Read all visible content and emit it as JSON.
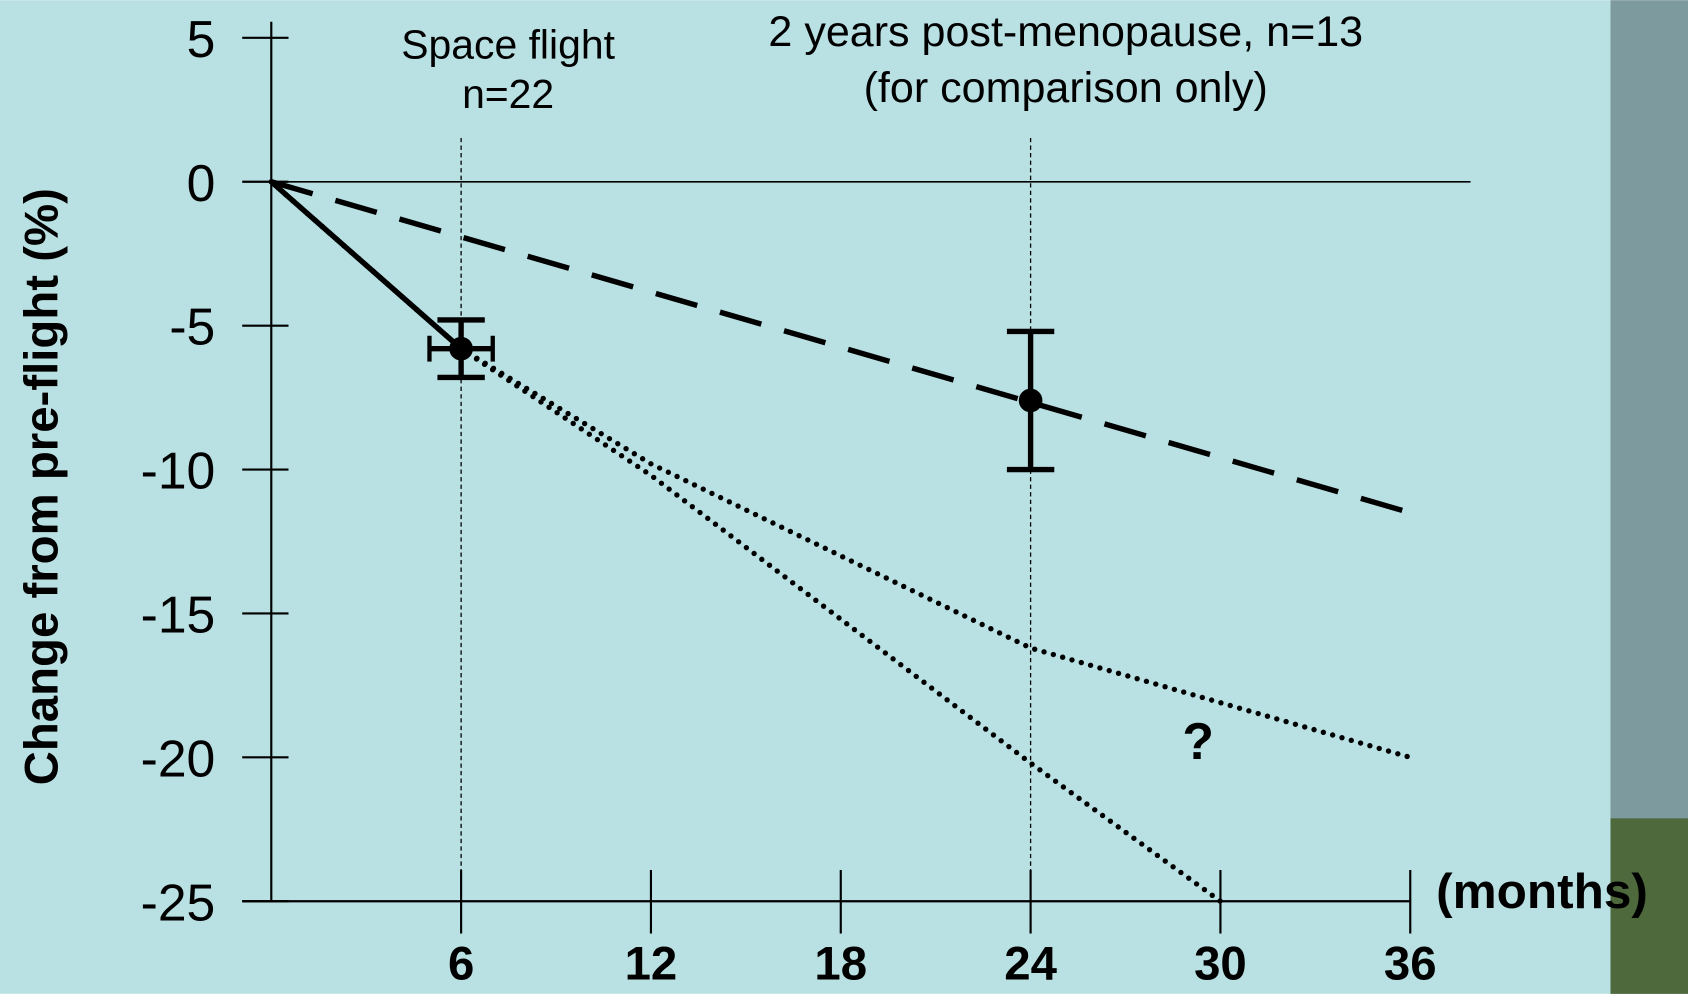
{
  "chart_data": {
    "type": "line",
    "y_label": "Change from pre-flight (%)",
    "x_label": "(months)",
    "annotations": [
      "Space flight",
      "n=22",
      "2 years post-menopause, n=13",
      "(for comparison only)",
      "?"
    ],
    "xlim": [
      0,
      36
    ],
    "ylim": [
      -25,
      5
    ],
    "xticks": [
      6,
      12,
      18,
      24,
      30,
      36
    ],
    "yticks": [
      5,
      0,
      -5,
      -10,
      -15,
      -20,
      -25
    ],
    "reference_x": [
      6,
      24
    ],
    "series": [
      {
        "color": "#000000",
        "dash": "solid",
        "x": [
          0,
          6
        ],
        "values": [
          0,
          -5.8
        ]
      },
      {
        "color": "#000000",
        "dash": "dashed",
        "x": [
          0,
          36
        ],
        "values": [
          0,
          -11.5
        ]
      },
      {
        "color": "#000000",
        "dash": "dotted",
        "x": [
          0,
          6,
          12,
          24,
          36
        ],
        "values": [
          0,
          -5.8,
          -9.8,
          -16.2,
          -20
        ]
      },
      {
        "color": "#000000",
        "dash": "dotted",
        "x": [
          0,
          6,
          12,
          24,
          30
        ],
        "values": [
          0,
          -5.8,
          -10.2,
          -20.2,
          -25
        ]
      }
    ],
    "points": [
      {
        "x": 6,
        "y": -5.8,
        "yerr": 1,
        "xerr": 1
      },
      {
        "x": 24,
        "y": -7.6,
        "yerr": 2.4
      }
    ]
  }
}
